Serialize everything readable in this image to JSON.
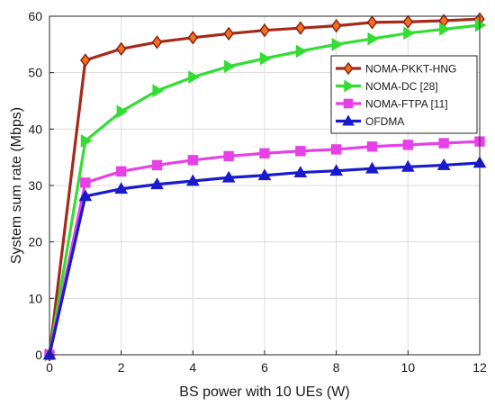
{
  "chart_data": {
    "type": "line",
    "xlabel": "BS power with 10 UEs (W)",
    "ylabel": "System sum rate (Mbps)",
    "xlim": [
      0,
      12
    ],
    "ylim": [
      0,
      60
    ],
    "xticks": [
      0,
      2,
      4,
      6,
      8,
      10,
      12
    ],
    "yticks": [
      0,
      10,
      20,
      30,
      40,
      50,
      60
    ],
    "grid": true,
    "legend_position": "top-right",
    "x": [
      0,
      1,
      2,
      3,
      4,
      5,
      6,
      7,
      8,
      9,
      10,
      11,
      12
    ],
    "series": [
      {
        "name": "NOMA-PKKT-HNG",
        "color": "#a52a1a",
        "marker": "diamond",
        "values": [
          0,
          52.2,
          54.2,
          55.4,
          56.2,
          56.9,
          57.5,
          57.9,
          58.3,
          58.9,
          59.0,
          59.2,
          59.5
        ]
      },
      {
        "name": "NOMA-DC [28]",
        "color": "#33dd33",
        "marker": "triangle-right",
        "values": [
          0,
          37.9,
          43.1,
          46.8,
          49.2,
          51.1,
          52.5,
          53.8,
          55.0,
          56.0,
          57.0,
          57.7,
          58.4
        ]
      },
      {
        "name": "NOMA-FTPA [11]",
        "color": "#e640e6",
        "marker": "square",
        "values": [
          0,
          30.5,
          32.5,
          33.6,
          34.5,
          35.2,
          35.7,
          36.1,
          36.4,
          36.9,
          37.2,
          37.5,
          37.8
        ]
      },
      {
        "name": "OFDMA",
        "color": "#1a1acc",
        "marker": "triangle-up",
        "values": [
          0,
          28.1,
          29.4,
          30.2,
          30.8,
          31.4,
          31.8,
          32.3,
          32.6,
          33.0,
          33.3,
          33.6,
          34.0
        ]
      }
    ]
  }
}
